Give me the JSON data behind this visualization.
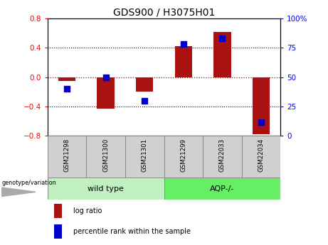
{
  "title": "GDS900 / H3075H01",
  "samples": [
    "GSM21298",
    "GSM21300",
    "GSM21301",
    "GSM21299",
    "GSM22033",
    "GSM22034"
  ],
  "log_ratios": [
    -0.05,
    -0.43,
    -0.2,
    0.42,
    0.62,
    -0.78
  ],
  "percentile_ranks": [
    40,
    50,
    30,
    78,
    83,
    12
  ],
  "groups": [
    {
      "label": "wild type",
      "indices": [
        0,
        1,
        2
      ],
      "color": "#c0f0c0"
    },
    {
      "label": "AQP-/-",
      "indices": [
        3,
        4,
        5
      ],
      "color": "#66ee66"
    }
  ],
  "left_ylim": [
    -0.8,
    0.8
  ],
  "right_ylim": [
    0,
    100
  ],
  "left_yticks": [
    -0.8,
    -0.4,
    0,
    0.4,
    0.8
  ],
  "right_yticks": [
    0,
    25,
    50,
    75,
    100
  ],
  "right_yticklabels": [
    "0",
    "25",
    "50",
    "75",
    "100%"
  ],
  "bar_color": "#aa1111",
  "dot_color": "#0000cc",
  "zero_line_color": "#cc0000",
  "background_color": "#ffffff",
  "genotype_label": "genotype/variation",
  "legend_log_ratio": "log ratio",
  "legend_percentile": "percentile rank within the sample",
  "bar_width": 0.45,
  "dot_size": 28,
  "sample_box_color": "#d0d0d0",
  "sample_box_edge": "#888888"
}
